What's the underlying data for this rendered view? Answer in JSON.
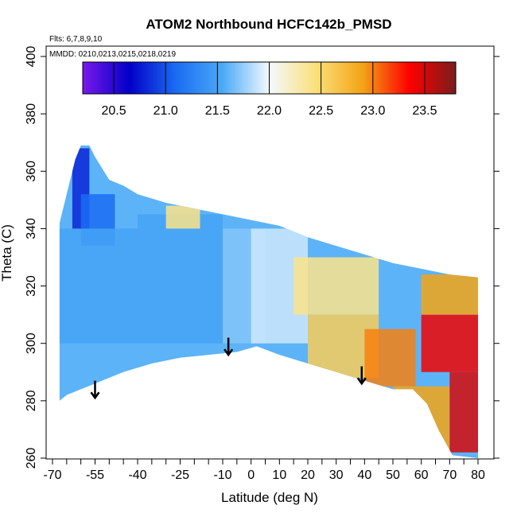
{
  "chart_data": {
    "type": "heatmap",
    "title": "ATOM2 Northbound HCFC142b_PMSD",
    "xlabel": "Latitude (deg N)",
    "ylabel": "Theta (C)",
    "xlim": [
      -70,
      80
    ],
    "ylim": [
      260,
      400
    ],
    "x_ticks": [
      "-70",
      "-55",
      "-40",
      "-25",
      "-10",
      "0",
      "10",
      "20",
      "30",
      "40",
      "50",
      "60",
      "70",
      "80"
    ],
    "x_tick_values": [
      -70,
      -55,
      -40,
      -25,
      -10,
      0,
      10,
      20,
      30,
      40,
      50,
      60,
      70,
      80
    ],
    "y_ticks": [
      "260",
      "280",
      "300",
      "320",
      "340",
      "360",
      "380",
      "400"
    ],
    "y_tick_values": [
      260,
      280,
      300,
      320,
      340,
      360,
      380,
      400
    ],
    "annotations": {
      "flights": "Flts: 6,7,8,9,10",
      "dates": "MMDD: 0210,0213,0215,0218,0219"
    },
    "colorbar": {
      "range": [
        20.2,
        23.8
      ],
      "ticks": [
        "20.5",
        "21.0",
        "21.5",
        "22.0",
        "22.5",
        "23.0",
        "23.5"
      ],
      "tick_values": [
        20.5,
        21.0,
        21.5,
        22.0,
        22.5,
        23.0,
        23.5
      ],
      "colors": [
        "#7a19ea",
        "#0000c8",
        "#1b6cf2",
        "#4aaaf6",
        "#f3f9ff",
        "#fbe07a",
        "#f3a416",
        "#ff0000",
        "#7a1c1c"
      ]
    },
    "domain_outline": [
      [
        -67.5,
        280
      ],
      [
        -65,
        282
      ],
      [
        -60,
        284
      ],
      [
        -55,
        286
      ],
      [
        -45,
        290
      ],
      [
        -35,
        293
      ],
      [
        -25,
        295
      ],
      [
        -15,
        296
      ],
      [
        -5,
        297
      ],
      [
        2,
        299
      ],
      [
        10,
        296
      ],
      [
        20,
        293
      ],
      [
        30,
        290
      ],
      [
        40,
        287
      ],
      [
        50,
        284
      ],
      [
        57,
        284
      ],
      [
        62,
        279
      ],
      [
        66,
        270
      ],
      [
        71,
        261
      ],
      [
        80,
        260
      ],
      [
        80,
        323
      ],
      [
        70,
        324
      ],
      [
        60,
        326
      ],
      [
        50,
        328
      ],
      [
        40,
        331
      ],
      [
        30,
        334
      ],
      [
        20,
        337
      ],
      [
        10,
        341
      ],
      [
        0,
        343
      ],
      [
        -10,
        345
      ],
      [
        -20,
        347
      ],
      [
        -30,
        349
      ],
      [
        -40,
        352
      ],
      [
        -45,
        355
      ],
      [
        -50,
        357
      ],
      [
        -55,
        365
      ],
      [
        -57,
        369
      ],
      [
        -60,
        369
      ],
      [
        -62,
        364
      ],
      [
        -65,
        352
      ],
      [
        -67.5,
        342
      ]
    ],
    "field_zones": [
      {
        "x": [
          -63,
          -57
        ],
        "y": [
          340,
          368
        ],
        "value": 20.8
      },
      {
        "x": [
          -60,
          -48
        ],
        "y": [
          334,
          352
        ],
        "value": 21.1
      },
      {
        "x": [
          -68,
          -40
        ],
        "y": [
          300,
          340
        ],
        "value": 21.5
      },
      {
        "x": [
          -40,
          -10
        ],
        "y": [
          300,
          345
        ],
        "value": 21.5
      },
      {
        "x": [
          -10,
          5
        ],
        "y": [
          300,
          340
        ],
        "value": 21.7
      },
      {
        "x": [
          0,
          20
        ],
        "y": [
          300,
          340
        ],
        "value": 21.9
      },
      {
        "x": [
          -30,
          -18
        ],
        "y": [
          340,
          348
        ],
        "value": 22.4
      },
      {
        "x": [
          15,
          45
        ],
        "y": [
          310,
          330
        ],
        "value": 22.4
      },
      {
        "x": [
          20,
          45
        ],
        "y": [
          288,
          310
        ],
        "value": 22.6
      },
      {
        "x": [
          40,
          58
        ],
        "y": [
          285,
          305
        ],
        "value": 23.0
      },
      {
        "x": [
          50,
          70
        ],
        "y": [
          262,
          285
        ],
        "value": 22.9
      },
      {
        "x": [
          60,
          80
        ],
        "y": [
          290,
          310
        ],
        "value": 23.4
      },
      {
        "x": [
          70,
          80
        ],
        "y": [
          262,
          290
        ],
        "value": 23.5
      },
      {
        "x": [
          60,
          80
        ],
        "y": [
          310,
          324
        ],
        "value": 22.9
      }
    ],
    "arrows": [
      {
        "x": -55,
        "y_top": 287,
        "y_bottom": 281
      },
      {
        "x": -8,
        "y_top": 302,
        "y_bottom": 296
      },
      {
        "x": 39,
        "y_top": 292,
        "y_bottom": 286
      }
    ]
  }
}
